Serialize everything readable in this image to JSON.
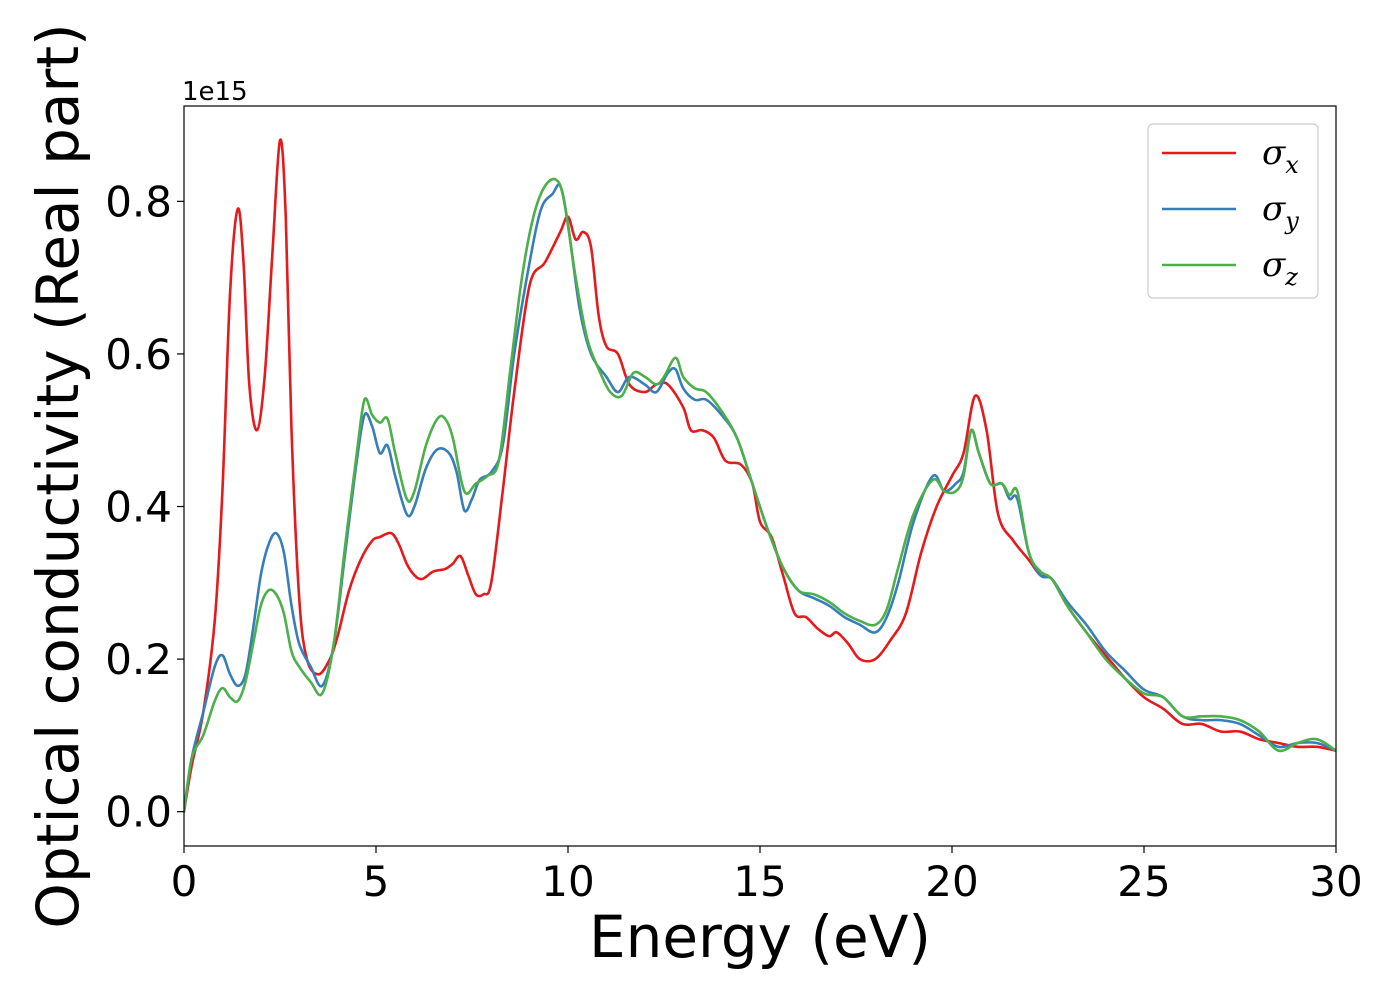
{
  "chart_data": {
    "type": "line",
    "title": "",
    "xlabel": "Energy (eV)",
    "ylabel": "Optical conductivity (Real part)",
    "y_offset_label": "1e15",
    "xlim": [
      0,
      30
    ],
    "ylim": [
      -0.045,
      0.925
    ],
    "xticks": [
      0,
      5,
      10,
      15,
      20,
      25,
      30
    ],
    "yticks": [
      0.0,
      0.2,
      0.4,
      0.6,
      0.8
    ],
    "grid": false,
    "legend_position": "top-right",
    "series": [
      {
        "name": "σx",
        "base": "σ",
        "sub": "x",
        "color": "#e41a1c",
        "points": [
          [
            0,
            0
          ],
          [
            0.2,
            0.06
          ],
          [
            0.5,
            0.13
          ],
          [
            0.8,
            0.25
          ],
          [
            1.0,
            0.42
          ],
          [
            1.2,
            0.68
          ],
          [
            1.4,
            0.79
          ],
          [
            1.55,
            0.72
          ],
          [
            1.7,
            0.56
          ],
          [
            1.9,
            0.5
          ],
          [
            2.1,
            0.57
          ],
          [
            2.3,
            0.73
          ],
          [
            2.5,
            0.88
          ],
          [
            2.65,
            0.78
          ],
          [
            2.8,
            0.5
          ],
          [
            3.0,
            0.28
          ],
          [
            3.2,
            0.2
          ],
          [
            3.5,
            0.18
          ],
          [
            3.8,
            0.2
          ],
          [
            4.0,
            0.23
          ],
          [
            4.3,
            0.29
          ],
          [
            4.6,
            0.33
          ],
          [
            4.9,
            0.355
          ],
          [
            5.1,
            0.36
          ],
          [
            5.4,
            0.365
          ],
          [
            5.6,
            0.35
          ],
          [
            5.8,
            0.325
          ],
          [
            6.0,
            0.31
          ],
          [
            6.2,
            0.305
          ],
          [
            6.5,
            0.315
          ],
          [
            6.8,
            0.318
          ],
          [
            7.0,
            0.325
          ],
          [
            7.2,
            0.335
          ],
          [
            7.4,
            0.31
          ],
          [
            7.6,
            0.285
          ],
          [
            7.8,
            0.285
          ],
          [
            8.0,
            0.3
          ],
          [
            8.3,
            0.42
          ],
          [
            8.6,
            0.55
          ],
          [
            9.0,
            0.69
          ],
          [
            9.4,
            0.72
          ],
          [
            9.8,
            0.76
          ],
          [
            10.0,
            0.78
          ],
          [
            10.2,
            0.75
          ],
          [
            10.4,
            0.76
          ],
          [
            10.6,
            0.74
          ],
          [
            10.8,
            0.65
          ],
          [
            11.0,
            0.61
          ],
          [
            11.3,
            0.6
          ],
          [
            11.6,
            0.56
          ],
          [
            12.0,
            0.55
          ],
          [
            12.3,
            0.56
          ],
          [
            12.6,
            0.56
          ],
          [
            13.0,
            0.53
          ],
          [
            13.2,
            0.5
          ],
          [
            13.5,
            0.5
          ],
          [
            13.8,
            0.49
          ],
          [
            14.1,
            0.46
          ],
          [
            14.5,
            0.455
          ],
          [
            14.8,
            0.43
          ],
          [
            15.0,
            0.38
          ],
          [
            15.3,
            0.36
          ],
          [
            15.6,
            0.31
          ],
          [
            15.9,
            0.26
          ],
          [
            16.2,
            0.255
          ],
          [
            16.5,
            0.24
          ],
          [
            16.8,
            0.23
          ],
          [
            17.0,
            0.235
          ],
          [
            17.3,
            0.22
          ],
          [
            17.6,
            0.2
          ],
          [
            18.0,
            0.2
          ],
          [
            18.4,
            0.225
          ],
          [
            18.8,
            0.26
          ],
          [
            19.2,
            0.34
          ],
          [
            19.6,
            0.4
          ],
          [
            20.0,
            0.44
          ],
          [
            20.3,
            0.47
          ],
          [
            20.6,
            0.545
          ],
          [
            20.9,
            0.5
          ],
          [
            21.2,
            0.39
          ],
          [
            21.6,
            0.355
          ],
          [
            22.0,
            0.33
          ],
          [
            22.3,
            0.31
          ],
          [
            22.6,
            0.305
          ],
          [
            23.0,
            0.27
          ],
          [
            23.5,
            0.235
          ],
          [
            24.0,
            0.205
          ],
          [
            24.5,
            0.175
          ],
          [
            25.0,
            0.15
          ],
          [
            25.5,
            0.135
          ],
          [
            26.0,
            0.115
          ],
          [
            26.5,
            0.115
          ],
          [
            27.0,
            0.105
          ],
          [
            27.5,
            0.105
          ],
          [
            28.0,
            0.095
          ],
          [
            28.5,
            0.09
          ],
          [
            29.0,
            0.085
          ],
          [
            29.5,
            0.085
          ],
          [
            30.0,
            0.08
          ]
        ]
      },
      {
        "name": "σy",
        "base": "σ",
        "sub": "y",
        "color": "#377eb8",
        "points": [
          [
            0,
            0
          ],
          [
            0.2,
            0.07
          ],
          [
            0.5,
            0.13
          ],
          [
            0.8,
            0.19
          ],
          [
            1.0,
            0.205
          ],
          [
            1.2,
            0.18
          ],
          [
            1.4,
            0.165
          ],
          [
            1.6,
            0.18
          ],
          [
            1.8,
            0.24
          ],
          [
            2.0,
            0.31
          ],
          [
            2.2,
            0.35
          ],
          [
            2.4,
            0.365
          ],
          [
            2.6,
            0.34
          ],
          [
            2.8,
            0.27
          ],
          [
            3.0,
            0.22
          ],
          [
            3.3,
            0.19
          ],
          [
            3.6,
            0.165
          ],
          [
            3.9,
            0.22
          ],
          [
            4.2,
            0.34
          ],
          [
            4.5,
            0.46
          ],
          [
            4.7,
            0.52
          ],
          [
            4.9,
            0.505
          ],
          [
            5.1,
            0.47
          ],
          [
            5.3,
            0.48
          ],
          [
            5.5,
            0.44
          ],
          [
            5.8,
            0.39
          ],
          [
            6.0,
            0.4
          ],
          [
            6.3,
            0.45
          ],
          [
            6.6,
            0.475
          ],
          [
            6.9,
            0.47
          ],
          [
            7.1,
            0.445
          ],
          [
            7.3,
            0.395
          ],
          [
            7.5,
            0.41
          ],
          [
            7.7,
            0.435
          ],
          [
            8.0,
            0.445
          ],
          [
            8.3,
            0.48
          ],
          [
            8.6,
            0.6
          ],
          [
            9.0,
            0.72
          ],
          [
            9.3,
            0.79
          ],
          [
            9.6,
            0.81
          ],
          [
            9.8,
            0.82
          ],
          [
            10.0,
            0.77
          ],
          [
            10.3,
            0.66
          ],
          [
            10.6,
            0.6
          ],
          [
            11.0,
            0.57
          ],
          [
            11.3,
            0.55
          ],
          [
            11.6,
            0.57
          ],
          [
            12.0,
            0.56
          ],
          [
            12.3,
            0.55
          ],
          [
            12.6,
            0.575
          ],
          [
            12.8,
            0.58
          ],
          [
            13.0,
            0.555
          ],
          [
            13.3,
            0.54
          ],
          [
            13.6,
            0.54
          ],
          [
            14.0,
            0.52
          ],
          [
            14.4,
            0.49
          ],
          [
            14.8,
            0.43
          ],
          [
            15.2,
            0.37
          ],
          [
            15.6,
            0.32
          ],
          [
            16.0,
            0.29
          ],
          [
            16.4,
            0.28
          ],
          [
            16.8,
            0.27
          ],
          [
            17.2,
            0.255
          ],
          [
            17.6,
            0.245
          ],
          [
            18.0,
            0.235
          ],
          [
            18.3,
            0.255
          ],
          [
            18.6,
            0.3
          ],
          [
            19.0,
            0.38
          ],
          [
            19.5,
            0.44
          ],
          [
            19.8,
            0.42
          ],
          [
            20.1,
            0.43
          ],
          [
            20.3,
            0.445
          ],
          [
            20.5,
            0.5
          ],
          [
            20.7,
            0.47
          ],
          [
            21.0,
            0.43
          ],
          [
            21.3,
            0.43
          ],
          [
            21.5,
            0.41
          ],
          [
            21.7,
            0.41
          ],
          [
            22.0,
            0.34
          ],
          [
            22.3,
            0.31
          ],
          [
            22.6,
            0.305
          ],
          [
            23.0,
            0.275
          ],
          [
            23.5,
            0.245
          ],
          [
            24.0,
            0.21
          ],
          [
            24.5,
            0.185
          ],
          [
            25.0,
            0.16
          ],
          [
            25.5,
            0.15
          ],
          [
            26.0,
            0.125
          ],
          [
            26.5,
            0.12
          ],
          [
            27.0,
            0.12
          ],
          [
            27.5,
            0.115
          ],
          [
            28.0,
            0.1
          ],
          [
            28.5,
            0.085
          ],
          [
            29.0,
            0.09
          ],
          [
            29.5,
            0.09
          ],
          [
            30.0,
            0.08
          ]
        ]
      },
      {
        "name": "σz",
        "base": "σ",
        "sub": "z",
        "color": "#4daf4a",
        "points": [
          [
            0,
            0
          ],
          [
            0.2,
            0.07
          ],
          [
            0.5,
            0.1
          ],
          [
            0.8,
            0.145
          ],
          [
            1.0,
            0.162
          ],
          [
            1.2,
            0.15
          ],
          [
            1.4,
            0.145
          ],
          [
            1.6,
            0.17
          ],
          [
            1.8,
            0.22
          ],
          [
            2.0,
            0.27
          ],
          [
            2.2,
            0.29
          ],
          [
            2.4,
            0.285
          ],
          [
            2.6,
            0.26
          ],
          [
            2.8,
            0.21
          ],
          [
            3.0,
            0.19
          ],
          [
            3.3,
            0.17
          ],
          [
            3.6,
            0.155
          ],
          [
            3.9,
            0.22
          ],
          [
            4.2,
            0.35
          ],
          [
            4.5,
            0.47
          ],
          [
            4.7,
            0.54
          ],
          [
            4.9,
            0.52
          ],
          [
            5.1,
            0.51
          ],
          [
            5.3,
            0.515
          ],
          [
            5.5,
            0.47
          ],
          [
            5.8,
            0.41
          ],
          [
            6.0,
            0.42
          ],
          [
            6.3,
            0.48
          ],
          [
            6.6,
            0.515
          ],
          [
            6.8,
            0.515
          ],
          [
            7.0,
            0.49
          ],
          [
            7.3,
            0.42
          ],
          [
            7.6,
            0.43
          ],
          [
            7.9,
            0.44
          ],
          [
            8.2,
            0.46
          ],
          [
            8.5,
            0.58
          ],
          [
            8.8,
            0.7
          ],
          [
            9.1,
            0.78
          ],
          [
            9.4,
            0.82
          ],
          [
            9.7,
            0.828
          ],
          [
            9.9,
            0.8
          ],
          [
            10.2,
            0.7
          ],
          [
            10.5,
            0.62
          ],
          [
            10.8,
            0.58
          ],
          [
            11.1,
            0.55
          ],
          [
            11.4,
            0.545
          ],
          [
            11.7,
            0.575
          ],
          [
            12.0,
            0.57
          ],
          [
            12.3,
            0.56
          ],
          [
            12.5,
            0.57
          ],
          [
            12.8,
            0.595
          ],
          [
            13.0,
            0.57
          ],
          [
            13.3,
            0.555
          ],
          [
            13.6,
            0.55
          ],
          [
            14.0,
            0.525
          ],
          [
            14.4,
            0.49
          ],
          [
            14.8,
            0.43
          ],
          [
            15.2,
            0.37
          ],
          [
            15.6,
            0.32
          ],
          [
            16.0,
            0.29
          ],
          [
            16.4,
            0.285
          ],
          [
            16.8,
            0.275
          ],
          [
            17.2,
            0.26
          ],
          [
            17.6,
            0.25
          ],
          [
            18.0,
            0.245
          ],
          [
            18.3,
            0.265
          ],
          [
            18.6,
            0.32
          ],
          [
            19.0,
            0.39
          ],
          [
            19.5,
            0.435
          ],
          [
            19.8,
            0.42
          ],
          [
            20.1,
            0.42
          ],
          [
            20.3,
            0.44
          ],
          [
            20.5,
            0.5
          ],
          [
            20.7,
            0.47
          ],
          [
            21.0,
            0.43
          ],
          [
            21.3,
            0.43
          ],
          [
            21.5,
            0.415
          ],
          [
            21.7,
            0.42
          ],
          [
            22.0,
            0.34
          ],
          [
            22.3,
            0.315
          ],
          [
            22.6,
            0.305
          ],
          [
            23.0,
            0.27
          ],
          [
            23.5,
            0.235
          ],
          [
            24.0,
            0.2
          ],
          [
            24.5,
            0.175
          ],
          [
            25.0,
            0.155
          ],
          [
            25.5,
            0.15
          ],
          [
            26.0,
            0.125
          ],
          [
            26.5,
            0.125
          ],
          [
            27.0,
            0.125
          ],
          [
            27.5,
            0.12
          ],
          [
            28.0,
            0.105
          ],
          [
            28.5,
            0.08
          ],
          [
            29.0,
            0.09
          ],
          [
            29.5,
            0.095
          ],
          [
            30.0,
            0.08
          ]
        ]
      }
    ]
  }
}
